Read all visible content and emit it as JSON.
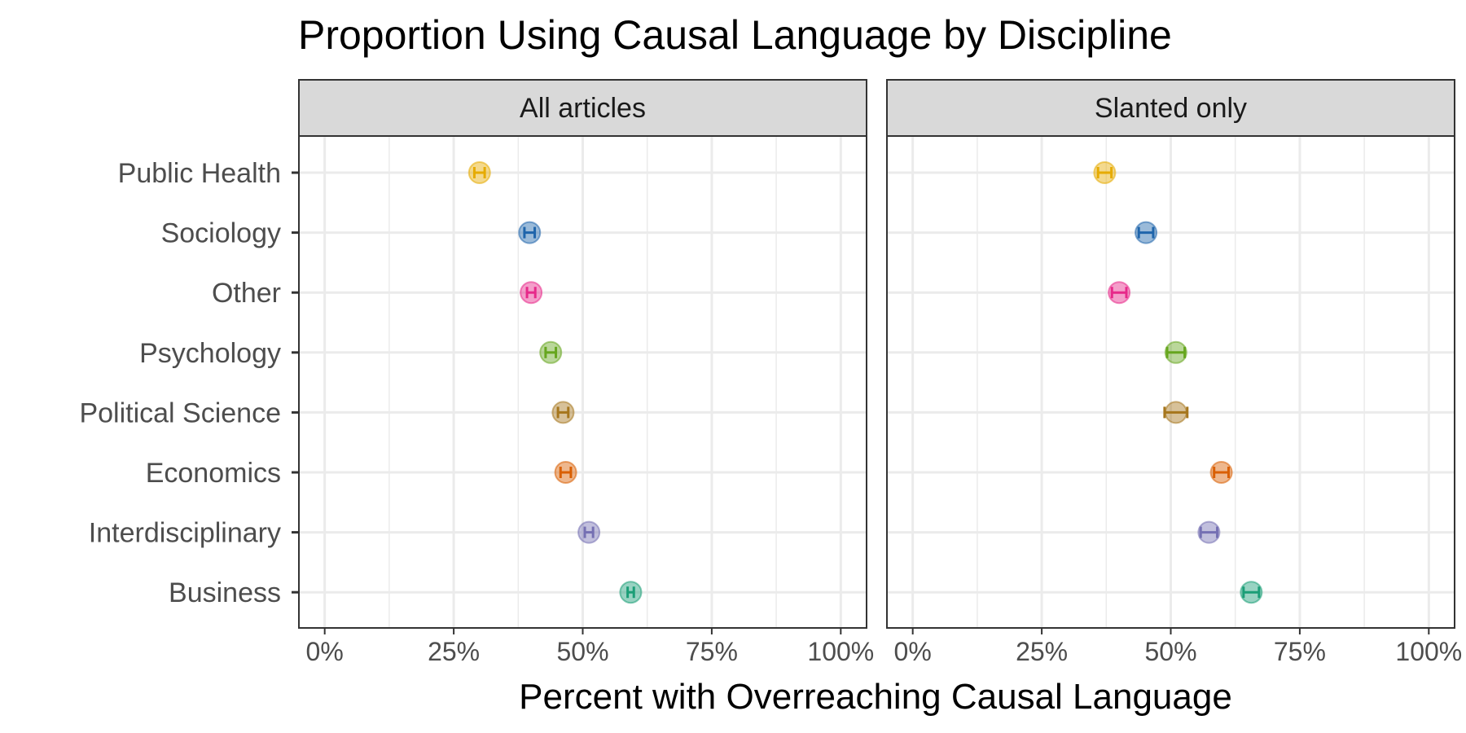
{
  "chart_data": {
    "type": "scatter",
    "title": "Proportion Using Causal Language by Discipline",
    "xlabel": "Percent with Overreaching Causal Language",
    "ylabel": "",
    "xlim": [
      -0.05,
      1.05
    ],
    "x_ticks": [
      0,
      0.25,
      0.5,
      0.75,
      1.0
    ],
    "x_tick_labels": [
      "0%",
      "25%",
      "50%",
      "75%",
      "100%"
    ],
    "grid": true,
    "legend": "none",
    "categories": [
      "Public Health",
      "Sociology",
      "Other",
      "Psychology",
      "Political Science",
      "Economics",
      "Interdisciplinary",
      "Business"
    ],
    "colors": {
      "Public Health": "#E6AB02",
      "Sociology": "#1F65AB",
      "Other": "#E7298A",
      "Psychology": "#66A61E",
      "Political Science": "#A6761D",
      "Economics": "#D95F02",
      "Interdisciplinary": "#7570B3",
      "Business": "#1B9E77"
    },
    "panels": [
      {
        "label": "All articles",
        "points": [
          {
            "category": "Public Health",
            "value": 0.3,
            "low": 0.29,
            "high": 0.31
          },
          {
            "category": "Sociology",
            "value": 0.397,
            "low": 0.387,
            "high": 0.407
          },
          {
            "category": "Other",
            "value": 0.4,
            "low": 0.392,
            "high": 0.408
          },
          {
            "category": "Psychology",
            "value": 0.438,
            "low": 0.428,
            "high": 0.448
          },
          {
            "category": "Political Science",
            "value": 0.462,
            "low": 0.452,
            "high": 0.472
          },
          {
            "category": "Economics",
            "value": 0.467,
            "low": 0.457,
            "high": 0.477
          },
          {
            "category": "Interdisciplinary",
            "value": 0.512,
            "low": 0.504,
            "high": 0.52
          },
          {
            "category": "Business",
            "value": 0.593,
            "low": 0.587,
            "high": 0.599
          }
        ]
      },
      {
        "label": "Slanted only",
        "points": [
          {
            "category": "Public Health",
            "value": 0.372,
            "low": 0.359,
            "high": 0.385
          },
          {
            "category": "Sociology",
            "value": 0.452,
            "low": 0.438,
            "high": 0.466
          },
          {
            "category": "Other",
            "value": 0.4,
            "low": 0.386,
            "high": 0.414
          },
          {
            "category": "Psychology",
            "value": 0.51,
            "low": 0.493,
            "high": 0.527
          },
          {
            "category": "Political Science",
            "value": 0.51,
            "low": 0.488,
            "high": 0.532
          },
          {
            "category": "Economics",
            "value": 0.598,
            "low": 0.584,
            "high": 0.612
          },
          {
            "category": "Interdisciplinary",
            "value": 0.574,
            "low": 0.558,
            "high": 0.59
          },
          {
            "category": "Business",
            "value": 0.656,
            "low": 0.641,
            "high": 0.671
          }
        ]
      }
    ]
  }
}
